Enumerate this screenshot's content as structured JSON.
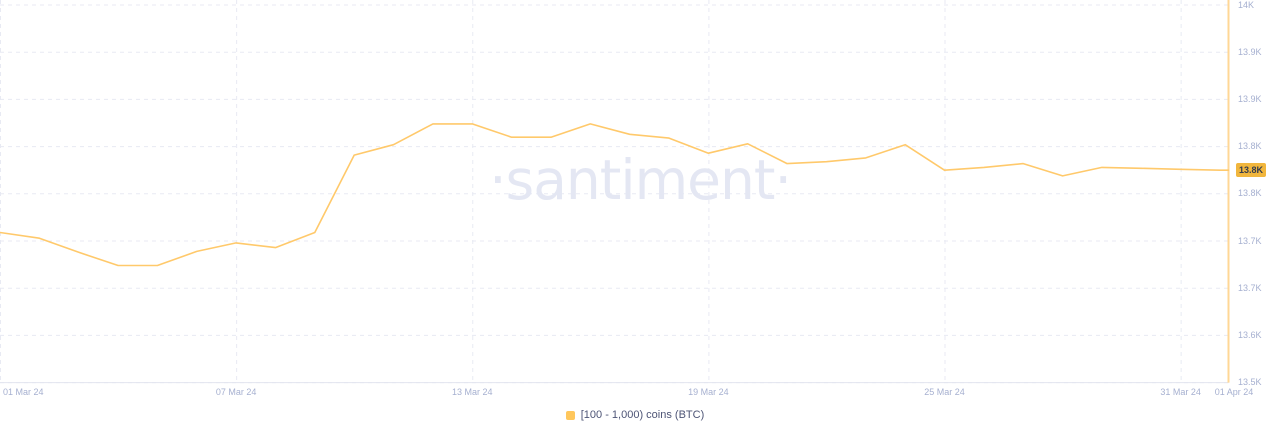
{
  "watermark": {
    "text": "·santiment·"
  },
  "colors": {
    "line": "#ffc96b",
    "legend_marker": "#ffc75c",
    "badge_bg": "#f1b63d",
    "badge_text": "#343c4d",
    "grid": "#e8eaf3",
    "axis_line": "#e2e5ef",
    "right_axis_line": "#ffd795",
    "tick_text": "#a6b0d0",
    "legend_text": "#4e5576",
    "watermark_text": "#e4e7f3"
  },
  "y_axis": {
    "labels": [
      "14K",
      "13.9K",
      "13.9K",
      "13.8K",
      "13.8K",
      "13.7K",
      "13.7K",
      "13.6K",
      "13.5K"
    ],
    "current_value_label": "13.8K",
    "current_value": 13825
  },
  "x_axis": {
    "ticks": [
      {
        "label": "01 Mar 24",
        "day": 0
      },
      {
        "label": "07 Mar 24",
        "day": 6
      },
      {
        "label": "13 Mar 24",
        "day": 12
      },
      {
        "label": "19 Mar 24",
        "day": 18
      },
      {
        "label": "25 Mar 24",
        "day": 24
      },
      {
        "label": "31 Mar 24",
        "day": 30
      },
      {
        "label": "01 Apr 24",
        "day": 31
      }
    ]
  },
  "legend": {
    "items": [
      {
        "label": "[100 - 1,000) coins (BTC)",
        "color": "#ffc75c"
      }
    ]
  },
  "chart_data": {
    "type": "line",
    "title": "",
    "xlabel": "",
    "ylabel": "",
    "grid": true,
    "legend_position": "bottom",
    "ylim": [
      13600,
      14000
    ],
    "y_tick_labels": [
      "14K",
      "13.9K",
      "13.9K",
      "13.8K",
      "13.8K",
      "13.7K",
      "13.7K",
      "13.6K",
      "13.5K"
    ],
    "x_tick_labels": [
      "01 Mar 24",
      "07 Mar 24",
      "13 Mar 24",
      "19 Mar 24",
      "25 Mar 24",
      "31 Mar 24",
      "01 Apr 24"
    ],
    "x": [
      "2024-03-01",
      "2024-03-02",
      "2024-03-03",
      "2024-03-04",
      "2024-03-05",
      "2024-03-06",
      "2024-03-07",
      "2024-03-08",
      "2024-03-09",
      "2024-03-10",
      "2024-03-11",
      "2024-03-12",
      "2024-03-13",
      "2024-03-14",
      "2024-03-15",
      "2024-03-16",
      "2024-03-17",
      "2024-03-18",
      "2024-03-19",
      "2024-03-20",
      "2024-03-21",
      "2024-03-22",
      "2024-03-23",
      "2024-03-24",
      "2024-03-25",
      "2024-03-26",
      "2024-03-27",
      "2024-03-28",
      "2024-03-29",
      "2024-03-30",
      "2024-03-31",
      "2024-04-01"
    ],
    "series": [
      {
        "name": "[100 - 1,000) coins (BTC)",
        "color": "#ffc96b",
        "values": [
          13759,
          13753,
          13738,
          13724,
          13724,
          13739,
          13748,
          13743,
          13759,
          13841,
          13852,
          13874,
          13874,
          13860,
          13860,
          13874,
          13863,
          13859,
          13843,
          13853,
          13832,
          13834,
          13838,
          13852,
          13825,
          13828,
          13832,
          13819,
          13828,
          13827,
          13826,
          13825
        ]
      }
    ],
    "last_value_label": "13.8K"
  }
}
